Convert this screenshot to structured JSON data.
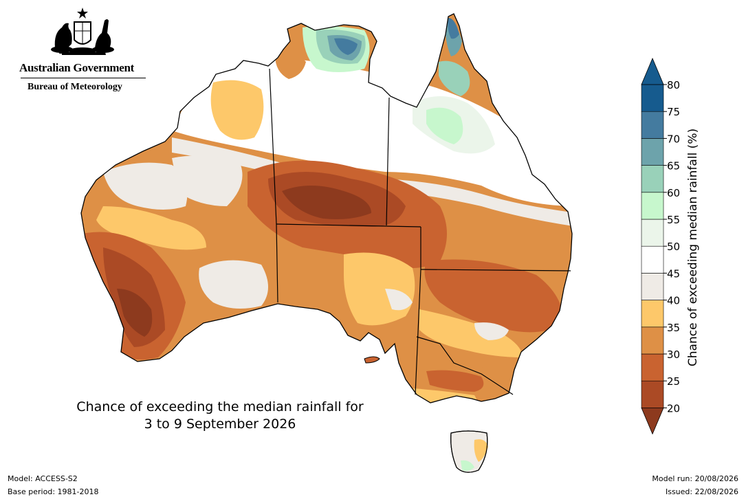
{
  "header": {
    "government": "Australian Government",
    "agency": "Bureau of Meteorology"
  },
  "map": {
    "title_line1": "Chance of exceeding the median rainfall for",
    "title_line2": "3 to 9 September 2026",
    "region": "Australia"
  },
  "colorbar": {
    "title": "Chance of exceeding median rainfall (%)",
    "ticks": [
      "20",
      "25",
      "30",
      "35",
      "40",
      "45",
      "50",
      "55",
      "60",
      "65",
      "70",
      "75",
      "80"
    ],
    "colors": [
      "#8d3a1e",
      "#ab4a25",
      "#c96330",
      "#de9046",
      "#fdc86a",
      "#efebe6",
      "#ffffff",
      "#ebf5ea",
      "#c7f7cd",
      "#99d1b9",
      "#6da3ab",
      "#447b9f",
      "#165b8e"
    ]
  },
  "footer": {
    "model": "Model: ACCESS-S2",
    "base_period": "Base period: 1981-2018",
    "model_run": "Model run: 20/08/2026",
    "issued": "Issued: 22/08/2026"
  }
}
